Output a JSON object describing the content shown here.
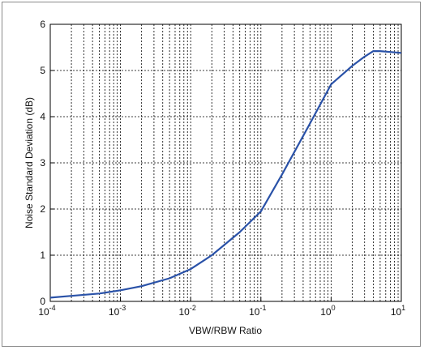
{
  "chart_data": {
    "type": "line",
    "title": "",
    "xlabel": "VBW/RBW Ratio",
    "ylabel": "Noise Standard Deviation (dB)",
    "xscale": "log",
    "xlim": [
      0.0001,
      10
    ],
    "ylim": [
      0,
      6
    ],
    "x_ticks": [
      {
        "value": 0.0001,
        "base": "10",
        "exp": "-4"
      },
      {
        "value": 0.001,
        "base": "10",
        "exp": "-3"
      },
      {
        "value": 0.01,
        "base": "10",
        "exp": "-2"
      },
      {
        "value": 0.1,
        "base": "10",
        "exp": "-1"
      },
      {
        "value": 1,
        "base": "10",
        "exp": "0"
      },
      {
        "value": 10,
        "base": "10",
        "exp": "1"
      }
    ],
    "y_ticks": [
      "0",
      "1",
      "2",
      "3",
      "4",
      "5",
      "6"
    ],
    "grid": true,
    "series": [
      {
        "color": "#2a52a8",
        "x": [
          0.0001,
          0.0002,
          0.0005,
          0.001,
          0.002,
          0.005,
          0.01,
          0.02,
          0.05,
          0.1,
          0.2,
          0.5,
          1,
          2,
          3,
          4,
          5,
          7,
          10
        ],
        "y": [
          0.08,
          0.12,
          0.17,
          0.24,
          0.33,
          0.5,
          0.7,
          1.0,
          1.5,
          1.95,
          2.75,
          3.85,
          4.7,
          5.1,
          5.3,
          5.42,
          5.42,
          5.4,
          5.38
        ]
      }
    ]
  }
}
